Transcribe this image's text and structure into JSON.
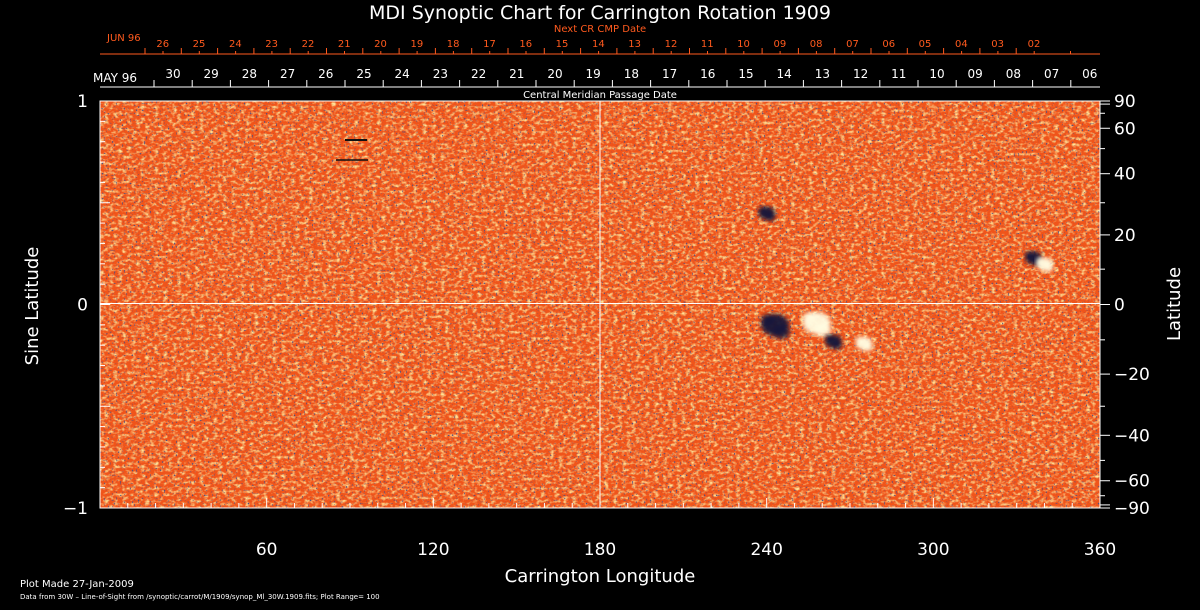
{
  "title": "MDI Synoptic Chart for Carrington Rotation 1909",
  "top_axis": {
    "label": "Next CR CMP Date",
    "month": "JUN 96",
    "ticks": [
      "26",
      "25",
      "24",
      "23",
      "22",
      "21",
      "20",
      "19",
      "18",
      "17",
      "16",
      "15",
      "14",
      "13",
      "12",
      "11",
      "10",
      "09",
      "08",
      "07",
      "06",
      "05",
      "04",
      "03",
      "02"
    ],
    "color": "#ff5a1e"
  },
  "second_axis": {
    "month": "MAY 96",
    "ticks": [
      "30",
      "29",
      "28",
      "27",
      "26",
      "25",
      "24",
      "23",
      "22",
      "21",
      "20",
      "19",
      "18",
      "17",
      "16",
      "15",
      "14",
      "13",
      "12",
      "11",
      "10",
      "09",
      "08",
      "07",
      "06"
    ],
    "label": "Central Meridian Passage Date"
  },
  "chart_data": {
    "type": "heatmap",
    "title": "MDI Synoptic Chart for Carrington Rotation 1909",
    "xlabel": "Carrington Longitude",
    "ylabel": "Sine Latitude",
    "y2label": "Latitude",
    "xlim": [
      0,
      360
    ],
    "ylim": [
      -1,
      1
    ],
    "x_ticks": [
      60,
      120,
      180,
      240,
      300,
      360
    ],
    "y_ticks": [
      -1,
      0,
      1
    ],
    "y_tick_labels": [
      "−1",
      "0",
      "1"
    ],
    "latitude_ticks": [
      90,
      60,
      40,
      20,
      0,
      -20,
      -40,
      -60,
      -90
    ],
    "latitude_tick_labels": [
      "90",
      "60",
      "40",
      "20",
      "0",
      "−20",
      "−40",
      "−60",
      "−90"
    ],
    "grid_lines": {
      "x": 180,
      "y": 0
    },
    "plot_range": 100,
    "colormap": {
      "background": "#f0541a",
      "positive": "#fffbe0",
      "negative": "#16163a"
    },
    "active_regions": [
      {
        "lon": 243,
        "sinlat": -0.1,
        "polarity": "negative"
      },
      {
        "lon": 258,
        "sinlat": -0.09,
        "polarity": "positive"
      },
      {
        "lon": 275,
        "sinlat": -0.19,
        "polarity": "positive"
      },
      {
        "lon": 264,
        "sinlat": -0.18,
        "polarity": "negative"
      },
      {
        "lon": 336,
        "sinlat": 0.23,
        "polarity": "negative"
      },
      {
        "lon": 340,
        "sinlat": 0.2,
        "polarity": "positive"
      },
      {
        "lon": 240,
        "sinlat": 0.45,
        "polarity": "negative"
      }
    ]
  },
  "footer": {
    "plot_made": "Plot Made 27-Jan-2009",
    "source": "Data from 30W – Line-of-Sight from /synoptic/carrot/M/1909/synop_Ml_30W.1909.fits; Plot Range= 100"
  }
}
